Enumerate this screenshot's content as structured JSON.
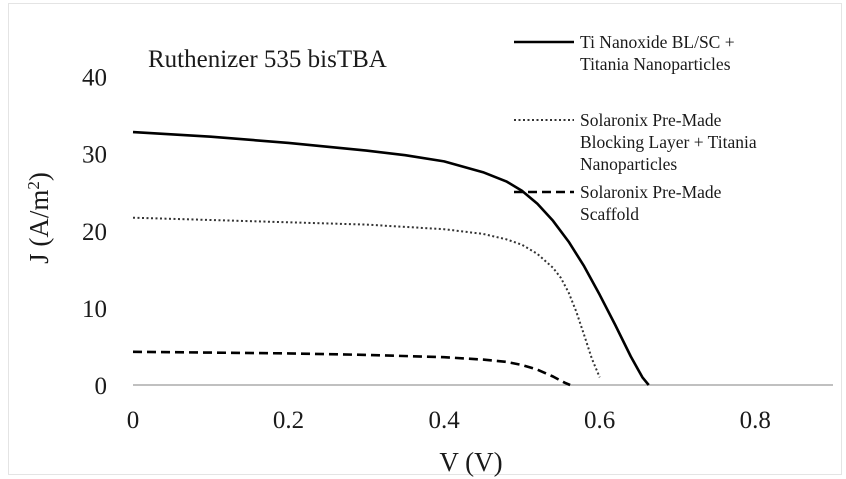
{
  "chart_data": {
    "type": "line",
    "title": "Ruthenizer 535 bisTBA",
    "xlabel": "V (V)",
    "ylabel_main": "J (A/m",
    "ylabel_sup": "2",
    "ylabel_close": ")",
    "xlim": [
      0,
      0.9
    ],
    "ylim": [
      0,
      45
    ],
    "x_ticks": [
      0,
      0.2,
      0.4,
      0.6,
      0.8
    ],
    "x_tick_labels": [
      "0",
      "0.2",
      "0.4",
      "0.6",
      "0.8"
    ],
    "y_ticks": [
      0,
      10,
      20,
      30,
      40
    ],
    "y_tick_labels": [
      "0",
      "10",
      "20",
      "30",
      "40"
    ],
    "grid": false,
    "legend_position": "top-right",
    "series": [
      {
        "name_lines": [
          "Ti Nanoxide BL/SC +",
          "Titania Nanoparticles"
        ],
        "style": "solid",
        "color": "#000000",
        "x": [
          0,
          0.1,
          0.2,
          0.3,
          0.35,
          0.4,
          0.45,
          0.48,
          0.5,
          0.52,
          0.54,
          0.56,
          0.58,
          0.6,
          0.62,
          0.64,
          0.655,
          0.663
        ],
        "y": [
          32.8,
          32.2,
          31.4,
          30.4,
          29.8,
          29.0,
          27.6,
          26.4,
          25.2,
          23.5,
          21.3,
          18.6,
          15.4,
          11.7,
          7.8,
          3.7,
          1.0,
          0
        ]
      },
      {
        "name_lines": [
          "Solaronix Pre-Made",
          "Blocking Layer + Titania",
          "Nanoparticles"
        ],
        "style": "dotted",
        "color": "#333333",
        "x": [
          0,
          0.1,
          0.2,
          0.3,
          0.4,
          0.45,
          0.48,
          0.5,
          0.52,
          0.54,
          0.55,
          0.56,
          0.57,
          0.58,
          0.59,
          0.6
        ],
        "y": [
          21.7,
          21.4,
          21.1,
          20.8,
          20.2,
          19.6,
          18.9,
          18.2,
          17.0,
          15.2,
          13.9,
          12.0,
          9.5,
          6.5,
          3.4,
          1.0
        ]
      },
      {
        "name_lines": [
          "Solaronix Pre-Made",
          "Scaffold"
        ],
        "style": "dashed",
        "color": "#000000",
        "x": [
          0,
          0.1,
          0.2,
          0.3,
          0.4,
          0.45,
          0.48,
          0.5,
          0.52,
          0.54,
          0.555,
          0.562
        ],
        "y": [
          4.3,
          4.2,
          4.1,
          3.9,
          3.6,
          3.3,
          3.0,
          2.6,
          2.0,
          1.1,
          0.3,
          0
        ]
      }
    ]
  }
}
